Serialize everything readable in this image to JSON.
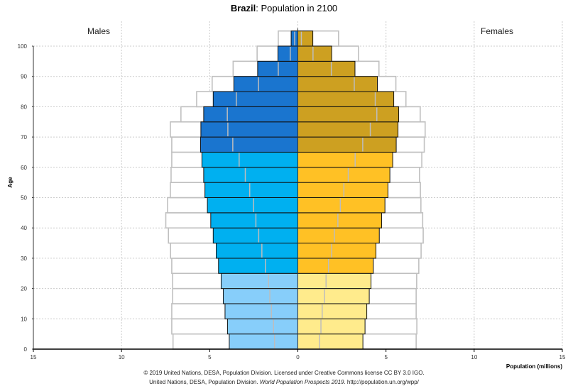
{
  "chart_data": {
    "type": "bar",
    "subtype": "population-pyramid",
    "title_bold": "Brazil",
    "title_rest": ": Population in 2100",
    "left_label": "Males",
    "right_label": "Females",
    "ylabel": "Age",
    "xlabel": "Population (millions)",
    "xlim": [
      -15,
      15
    ],
    "ylim": [
      0,
      105
    ],
    "x_ticks": [
      {
        "value": -15,
        "label": "15"
      },
      {
        "value": -10,
        "label": "10"
      },
      {
        "value": -5,
        "label": "5"
      },
      {
        "value": 0,
        "label": "0"
      },
      {
        "value": 5,
        "label": "5"
      },
      {
        "value": 10,
        "label": "10"
      },
      {
        "value": 15,
        "label": "15"
      }
    ],
    "y_ticks": [
      0,
      10,
      20,
      30,
      40,
      50,
      60,
      70,
      80,
      90,
      100
    ],
    "grid": true,
    "age_groups": [
      "0-4",
      "5-9",
      "10-14",
      "15-19",
      "20-24",
      "25-29",
      "30-34",
      "35-39",
      "40-44",
      "45-49",
      "50-54",
      "55-59",
      "60-64",
      "65-69",
      "70-74",
      "75-79",
      "80-84",
      "85-89",
      "90-94",
      "95-99",
      "100+"
    ],
    "series": [
      {
        "name": "Males",
        "values": [
          3.89,
          3.99,
          4.13,
          4.23,
          4.35,
          4.5,
          4.63,
          4.8,
          4.94,
          5.13,
          5.27,
          5.34,
          5.44,
          5.52,
          5.5,
          5.34,
          4.8,
          3.63,
          2.28,
          1.13,
          0.38
        ],
        "markers": [
          1.32,
          1.38,
          1.5,
          1.59,
          1.66,
          1.84,
          2.04,
          2.22,
          2.38,
          2.51,
          2.73,
          2.98,
          3.33,
          3.69,
          3.97,
          4.0,
          3.49,
          2.23,
          1.11,
          0.43,
          0.18
        ],
        "peak_outline": [
          7.08,
          7.15,
          7.15,
          7.1,
          7.1,
          7.15,
          7.22,
          7.34,
          7.49,
          7.39,
          7.23,
          7.19,
          7.15,
          7.15,
          7.23,
          6.63,
          5.74,
          4.86,
          3.67,
          2.31,
          1.11
        ]
      },
      {
        "name": "Females",
        "values": [
          3.69,
          3.81,
          3.91,
          4.05,
          4.15,
          4.28,
          4.43,
          4.62,
          4.75,
          4.94,
          5.11,
          5.22,
          5.38,
          5.58,
          5.68,
          5.72,
          5.44,
          4.51,
          3.24,
          1.92,
          0.85
        ],
        "markers": [
          1.23,
          1.31,
          1.38,
          1.51,
          1.6,
          1.74,
          1.92,
          2.07,
          2.27,
          2.41,
          2.61,
          2.86,
          3.25,
          3.68,
          4.11,
          4.48,
          4.39,
          3.2,
          1.9,
          0.86,
          0.2
        ],
        "peak_outline": [
          6.71,
          6.75,
          6.71,
          6.71,
          6.74,
          6.86,
          6.99,
          7.11,
          7.08,
          6.98,
          6.95,
          6.9,
          7.03,
          7.17,
          7.22,
          6.94,
          6.13,
          5.56,
          4.6,
          3.44,
          2.31
        ]
      }
    ],
    "color_groups": [
      {
        "ages": "0-24",
        "male": "#87cefa",
        "female": "#ffeb8c"
      },
      {
        "ages": "25-64",
        "male": "#00b0f0",
        "female": "#ffc125"
      },
      {
        "ages": "65+",
        "male": "#1a75cf",
        "female": "#cda021"
      }
    ]
  },
  "footer": {
    "line1": "© 2019 United Nations, DESA, Population Division. Licensed under Creative Commons license CC BY 3.0 IGO.",
    "line2_prefix": "United Nations, DESA, Population Division. ",
    "line2_italic": "World Population Prospects 2019",
    "line2_suffix": ". http://population.un.org/wpp/"
  }
}
